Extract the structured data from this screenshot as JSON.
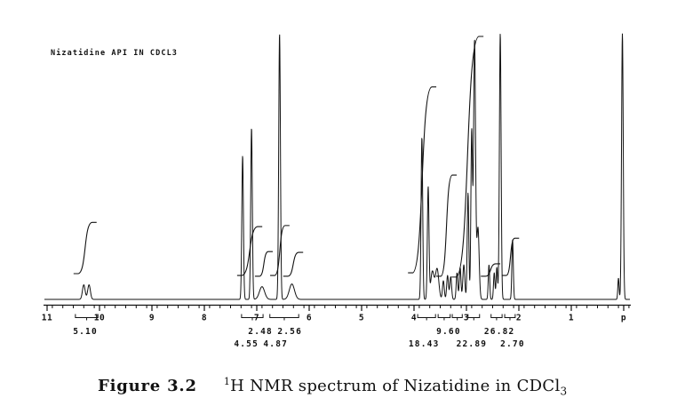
{
  "spectrum": {
    "title": "Nizatidine API IN CDCL3"
  },
  "caption": {
    "label": "Figure 3.2",
    "superscript": "1",
    "body": "H NMR spectrum of Nizatidine in CDCl",
    "subscript": "3"
  },
  "colors": {
    "trace": "#121212",
    "text": "#111111",
    "background": "#ffffff"
  },
  "chart_data": {
    "type": "line",
    "title": "Nizatidine API IN CDCL3",
    "xlabel": "ppm (axis label truncated to 'p')",
    "ylabel": "",
    "x_axis": {
      "unit": "ppm",
      "direction": "reversed",
      "range_ppm": [
        11.1,
        -0.15
      ],
      "minor_tick_interval": 0.2,
      "major_ticks": [
        {
          "ppm": 11,
          "label": "11"
        },
        {
          "ppm": 10,
          "label": "10"
        },
        {
          "ppm": 9,
          "label": "9"
        },
        {
          "ppm": 8,
          "label": "8"
        },
        {
          "ppm": 7,
          "label": "7"
        },
        {
          "ppm": 6,
          "label": "6"
        },
        {
          "ppm": 5,
          "label": "5"
        },
        {
          "ppm": 4,
          "label": "4"
        },
        {
          "ppm": 3,
          "label": "3"
        },
        {
          "ppm": 2,
          "label": "2"
        },
        {
          "ppm": 1,
          "label": "1"
        },
        {
          "ppm": 0,
          "label": "p"
        }
      ]
    },
    "peaks": [
      {
        "ppm": 10.3,
        "rel_height": 0.055,
        "width_ppm": 0.03
      },
      {
        "ppm": 10.2,
        "rel_height": 0.055,
        "width_ppm": 0.03
      },
      {
        "ppm": 7.27,
        "rel_height": 0.54,
        "width_ppm": 0.018
      },
      {
        "ppm": 7.1,
        "rel_height": 0.645,
        "width_ppm": 0.018
      },
      {
        "ppm": 6.9,
        "rel_height": 0.048,
        "width_ppm": 0.058
      },
      {
        "ppm": 6.565,
        "rel_height": 1.0,
        "width_ppm": 0.019
      },
      {
        "ppm": 6.33,
        "rel_height": 0.058,
        "width_ppm": 0.058
      },
      {
        "ppm": 3.85,
        "rel_height": 0.61,
        "width_ppm": 0.018
      },
      {
        "ppm": 3.73,
        "rel_height": 0.42,
        "width_ppm": 0.018
      },
      {
        "ppm": 3.65,
        "rel_height": 0.105,
        "width_ppm": 0.038
      },
      {
        "ppm": 3.56,
        "rel_height": 0.115,
        "width_ppm": 0.038
      },
      {
        "ppm": 3.44,
        "rel_height": 0.07,
        "width_ppm": 0.02
      },
      {
        "ppm": 3.36,
        "rel_height": 0.09,
        "width_ppm": 0.02
      },
      {
        "ppm": 3.3,
        "rel_height": 0.085,
        "width_ppm": 0.02
      },
      {
        "ppm": 3.18,
        "rel_height": 0.1,
        "width_ppm": 0.018
      },
      {
        "ppm": 3.12,
        "rel_height": 0.12,
        "width_ppm": 0.018
      },
      {
        "ppm": 3.05,
        "rel_height": 0.13,
        "width_ppm": 0.022
      },
      {
        "ppm": 2.97,
        "rel_height": 0.4,
        "width_ppm": 0.018
      },
      {
        "ppm": 2.9,
        "rel_height": 0.63,
        "width_ppm": 0.018
      },
      {
        "ppm": 2.845,
        "rel_height": 0.975,
        "width_ppm": 0.022
      },
      {
        "ppm": 2.78,
        "rel_height": 0.27,
        "width_ppm": 0.026
      },
      {
        "ppm": 2.57,
        "rel_height": 0.13,
        "width_ppm": 0.016
      },
      {
        "ppm": 2.47,
        "rel_height": 0.1,
        "width_ppm": 0.016
      },
      {
        "ppm": 2.42,
        "rel_height": 0.12,
        "width_ppm": 0.016
      },
      {
        "ppm": 2.355,
        "rel_height": 1.0,
        "width_ppm": 0.019
      },
      {
        "ppm": 2.12,
        "rel_height": 0.225,
        "width_ppm": 0.016
      },
      {
        "ppm": 0.1,
        "rel_height": 0.08,
        "width_ppm": 0.014
      },
      {
        "ppm": 0.025,
        "rel_height": 1.0,
        "width_ppm": 0.019
      }
    ],
    "integral_curves": [
      {
        "from_ppm": 10.41,
        "to_ppm": 10.14,
        "start_frac": 0.097,
        "end_frac": 0.29
      },
      {
        "from_ppm": 7.29,
        "to_ppm": 6.98,
        "start_frac": 0.09,
        "end_frac": 0.274
      },
      {
        "from_ppm": 6.95,
        "to_ppm": 6.78,
        "start_frac": 0.087,
        "end_frac": 0.18
      },
      {
        "from_ppm": 6.66,
        "to_ppm": 6.46,
        "start_frac": 0.09,
        "end_frac": 0.278
      },
      {
        "from_ppm": 6.41,
        "to_ppm": 6.2,
        "start_frac": 0.087,
        "end_frac": 0.177
      },
      {
        "from_ppm": 4.03,
        "to_ppm": 3.66,
        "start_frac": 0.1,
        "end_frac": 0.8
      },
      {
        "from_ppm": 3.49,
        "to_ppm": 3.27,
        "start_frac": 0.087,
        "end_frac": 0.468
      },
      {
        "from_ppm": 3.2,
        "to_ppm": 2.76,
        "start_frac": 0.084,
        "end_frac": 0.99
      },
      {
        "from_ppm": 2.64,
        "to_ppm": 2.44,
        "start_frac": 0.087,
        "end_frac": 0.134
      },
      {
        "from_ppm": 2.24,
        "to_ppm": 2.08,
        "start_frac": 0.09,
        "end_frac": 0.23
      }
    ],
    "integral_regions_ppm": [
      [
        10.46,
        10.03
      ],
      [
        7.29,
        6.88
      ],
      [
        6.75,
        6.2
      ],
      [
        3.93,
        3.59
      ],
      [
        3.54,
        3.31
      ],
      [
        3.27,
        3.08
      ],
      [
        2.97,
        2.75
      ],
      [
        2.53,
        2.32
      ],
      [
        2.27,
        2.07
      ]
    ],
    "integral_labels": [
      {
        "value": "5.10",
        "x_ppm": 10.27,
        "row": 1
      },
      {
        "value": "2.48",
        "x_ppm": 6.93,
        "row": 1
      },
      {
        "value": "2.56",
        "x_ppm": 6.37,
        "row": 1
      },
      {
        "value": "4.55",
        "x_ppm": 7.2,
        "row": 2
      },
      {
        "value": "4.87",
        "x_ppm": 6.64,
        "row": 2
      },
      {
        "value": "9.60",
        "x_ppm": 3.34,
        "row": 1
      },
      {
        "value": "26.82",
        "x_ppm": 2.37,
        "row": 1
      },
      {
        "value": "18.43",
        "x_ppm": 3.81,
        "row": 2
      },
      {
        "value": "22.89",
        "x_ppm": 2.9,
        "row": 2
      },
      {
        "value": "2.70",
        "x_ppm": 2.12,
        "row": 2
      }
    ]
  }
}
